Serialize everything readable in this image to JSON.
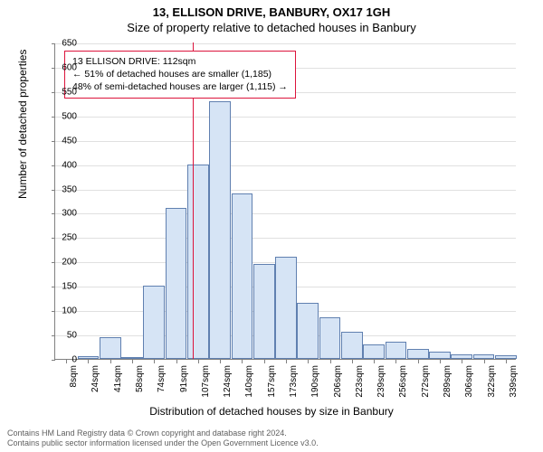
{
  "title_main": "13, ELLISON DRIVE, BANBURY, OX17 1GH",
  "title_sub": "Size of property relative to detached houses in Banbury",
  "ylabel": "Number of detached properties",
  "xlabel": "Distribution of detached houses by size in Banbury",
  "chart": {
    "type": "histogram",
    "background_color": "#ffffff",
    "grid_color": "#e0e0e0",
    "axis_color": "#808080",
    "bar_fill": "#d6e4f5",
    "bar_border": "#6080b0",
    "marker_color": "#dc143c",
    "ylim": [
      0,
      650
    ],
    "yticks": [
      0,
      50,
      100,
      150,
      200,
      250,
      300,
      350,
      400,
      450,
      500,
      550,
      600,
      650
    ],
    "xticks": [
      "8sqm",
      "24sqm",
      "41sqm",
      "58sqm",
      "74sqm",
      "91sqm",
      "107sqm",
      "124sqm",
      "140sqm",
      "157sqm",
      "173sqm",
      "190sqm",
      "206sqm",
      "223sqm",
      "239sqm",
      "256sqm",
      "272sqm",
      "289sqm",
      "306sqm",
      "322sqm",
      "339sqm"
    ],
    "bar_count": 21,
    "values": [
      0,
      6,
      45,
      2,
      150,
      310,
      400,
      530,
      340,
      195,
      210,
      115,
      85,
      55,
      30,
      35,
      20,
      15,
      10,
      10,
      8
    ],
    "marker_value_sqm": 112,
    "annotation": {
      "line1": "13 ELLISON DRIVE: 112sqm",
      "line2": "← 51% of detached houses are smaller (1,185)",
      "line3": "48% of semi-detached houses are larger (1,115) →",
      "border_color": "#dc143c"
    },
    "font_size_axis": 10,
    "font_size_label": 12,
    "font_size_title": 13
  },
  "footer": {
    "line1": "Contains HM Land Registry data © Crown copyright and database right 2024.",
    "line2": "Contains public sector information licensed under the Open Government Licence v3.0.",
    "color": "#606060"
  }
}
